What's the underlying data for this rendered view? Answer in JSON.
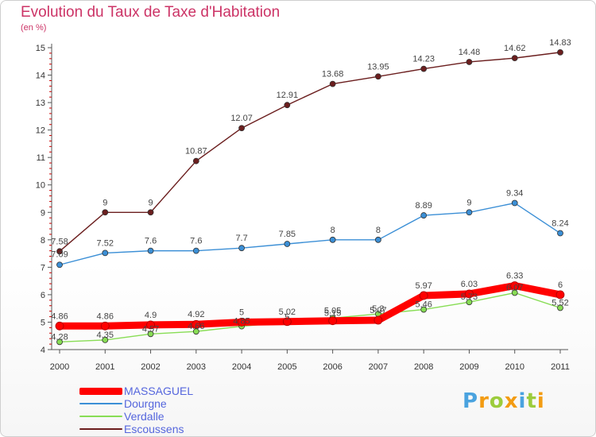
{
  "title": "Evolution du Taux de Taxe d'Habitation",
  "subtitle": "(en %)",
  "logo_text": "Proxiti",
  "chart_data": {
    "type": "line",
    "title": "Evolution du Taux de Taxe d'Habitation",
    "ylabel": "(en %)",
    "xlabel": "",
    "x": [
      "2000",
      "2001",
      "2002",
      "2003",
      "2004",
      "2005",
      "2006",
      "2007",
      "2008",
      "2009",
      "2010",
      "2011"
    ],
    "ylim": [
      4,
      15
    ],
    "yticks": [
      4,
      5,
      6,
      7,
      8,
      9,
      10,
      11,
      12,
      13,
      14,
      15
    ],
    "grid": false,
    "legend_position": "bottom-left",
    "series": [
      {
        "name": "MASSAGUEL",
        "color": "#ff0000",
        "values": [
          4.86,
          4.86,
          4.9,
          4.92,
          5,
          5.02,
          5.05,
          5.07,
          5.97,
          6.03,
          6.33,
          6
        ],
        "labels": [
          "4.86",
          "4.86",
          "4.9",
          "4.92",
          "5",
          "5.02",
          "5.05",
          "5.07",
          "5.97",
          "6.03",
          "6.33",
          "6"
        ]
      },
      {
        "name": "Dourgne",
        "color": "#3b8fd6",
        "values": [
          7.09,
          7.52,
          7.6,
          7.6,
          7.7,
          7.85,
          8,
          8,
          8.89,
          9,
          9.34,
          8.24
        ],
        "labels": [
          "7.09",
          "7.52",
          "7.6",
          "7.6",
          "7.7",
          "7.85",
          "8",
          "8",
          "8.89",
          "9",
          "9.34",
          "8.24"
        ]
      },
      {
        "name": "Verdalle",
        "color": "#88dd55",
        "values": [
          4.28,
          4.35,
          4.57,
          4.66,
          4.85,
          5,
          5.15,
          5.3,
          5.46,
          5.73,
          6.07,
          5.52
        ],
        "labels": [
          "4.28",
          "4.35",
          "4.57",
          "4.66",
          "4.85",
          "5",
          "5.15",
          "5.3",
          "5.46",
          "5.73",
          "6.07",
          "5.52"
        ]
      },
      {
        "name": "Escoussens",
        "color": "#6b1e1e",
        "values": [
          7.58,
          9,
          9,
          10.87,
          12.07,
          12.91,
          13.68,
          13.95,
          14.23,
          14.48,
          14.62,
          14.83
        ],
        "labels": [
          "7.58",
          "9",
          "9",
          "10.87",
          "12.07",
          "12.91",
          "13.68",
          "13.95",
          "14.23",
          "14.48",
          "14.62",
          "14.83"
        ]
      }
    ]
  }
}
